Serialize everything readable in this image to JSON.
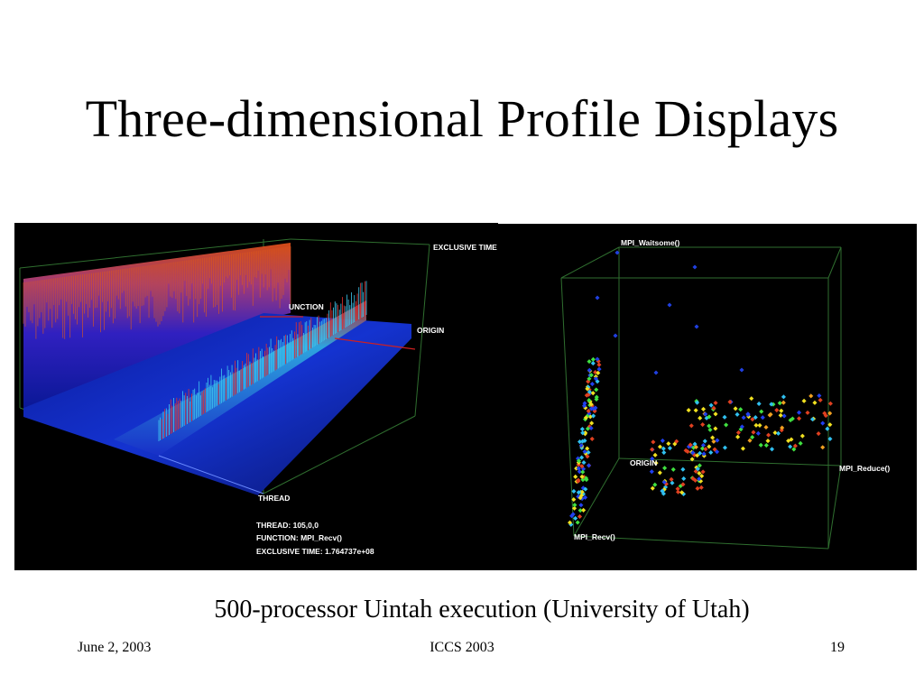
{
  "slide": {
    "title": "Three-dimensional Profile Displays",
    "caption": "500-processor Uintah execution (University of Utah)"
  },
  "left_view": {
    "axis_labels": {
      "exclusive_time": "EXCLUSIVE TIME",
      "function": "UNCTION",
      "origin": "ORIGIN",
      "thread": "THREAD"
    },
    "info": {
      "thread": "THREAD:  105,0,0",
      "function": "FUNCTION:  MPI_Recv()",
      "exclusive_time": "EXCLUSIVE TIME:  1.764737e+08"
    }
  },
  "right_view": {
    "axis_labels": {
      "top": "MPI_Waitsome()",
      "origin": "ORIGIN",
      "right": "MPI_Reduce()",
      "bottom": "MPI_Recv()"
    }
  },
  "footer": {
    "date": "June 2, 2003",
    "conference": "ICCS 2003",
    "page": "19"
  },
  "colors": {
    "background": "#ffffff",
    "panel_background": "#000000",
    "frame_lines": "#2f6e2f",
    "surface_low": "#1020c8",
    "surface_high": "#c83a10"
  }
}
